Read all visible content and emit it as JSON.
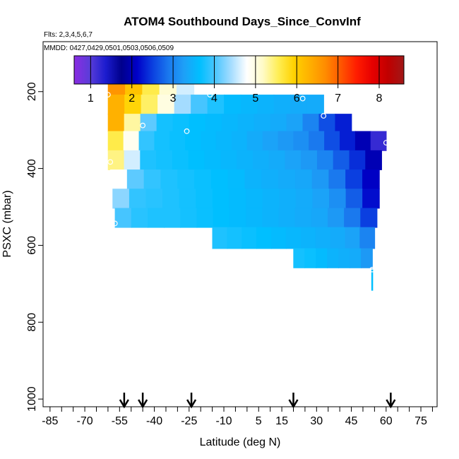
{
  "chart_data": {
    "type": "heatmap",
    "title": "ATOM4 Southbound Days_Since_ConvInf",
    "subtitle_flights": "Flts: 2,3,4,5,6,7",
    "subtitle_dates": "MMDD: 0427,0429,0501,0503,0506,0509",
    "xlabel": "Latitude (deg N)",
    "ylabel": "PSXC (mbar)",
    "xlim": [
      -88,
      82
    ],
    "ylim": [
      1020,
      70
    ],
    "y_reversed": true,
    "x_ticks": [
      -85,
      -70,
      -55,
      -40,
      -25,
      -10,
      5,
      15,
      30,
      45,
      60,
      75
    ],
    "x_minor_ticks": [
      -85,
      -80,
      -75,
      -70,
      -65,
      -60,
      -55,
      -50,
      -45,
      -40,
      -35,
      -30,
      -25,
      -20,
      -15,
      -10,
      -5,
      0,
      5,
      10,
      15,
      20,
      25,
      30,
      35,
      40,
      45,
      50,
      55,
      60,
      65,
      70,
      75,
      80
    ],
    "y_ticks": [
      200,
      400,
      600,
      800,
      1000
    ],
    "colorbar": {
      "ticks": [
        1,
        2,
        3,
        4,
        5,
        6,
        7,
        8
      ],
      "range": [
        0.6,
        8.6
      ],
      "colors": [
        "#8a2be2",
        "#5a3dd8",
        "#1c1ccf",
        "#00008b",
        "#0000c8",
        "#0b40e0",
        "#1a78ee",
        "#1ea0f7",
        "#00bfff",
        "#4cc6ff",
        "#a6ddff",
        "#ffffff",
        "#fffbc8",
        "#ffee55",
        "#ffd200",
        "#ffb000",
        "#ff8c00",
        "#ff5500",
        "#ff1c00",
        "#e60000",
        "#c00000",
        "#a01818"
      ]
    },
    "arrows_lat": [
      -53,
      -45,
      -24,
      20,
      62
    ],
    "cells": [
      {
        "lat": [
          -60,
          -23
        ],
        "p": [
          163,
          208
        ],
        "v": [
          6.6,
          6.1,
          5.6,
          5.1,
          4.6
        ]
      },
      {
        "lat": [
          -60,
          33
        ],
        "p": [
          208,
          258
        ],
        "v": [
          6.3,
          5.9,
          5.5,
          5.0,
          4.4,
          4.0,
          3.8,
          3.6,
          3.55,
          3.5,
          3.45,
          3.4,
          3.4
        ]
      },
      {
        "lat": [
          -60,
          45
        ],
        "p": [
          258,
          303
        ],
        "v": [
          6.3,
          5.3,
          4.1,
          3.75,
          3.7,
          3.65,
          3.6,
          3.55,
          3.5,
          3.45,
          3.4,
          3.3,
          3.0,
          2.6,
          2.3
        ]
      },
      {
        "lat": [
          -60,
          60
        ],
        "p": [
          303,
          353
        ],
        "v": [
          5.6,
          4.9,
          3.9,
          3.75,
          3.7,
          3.65,
          3.6,
          3.55,
          3.5,
          3.4,
          3.3,
          3.2,
          3.1,
          2.9,
          2.6,
          2.3,
          2.0,
          1.2
        ]
      },
      {
        "lat": [
          -60,
          58
        ],
        "p": [
          353,
          403
        ],
        "v": [
          5.4,
          4.6,
          3.8,
          3.75,
          3.7,
          3.65,
          3.6,
          3.55,
          3.5,
          3.45,
          3.4,
          3.3,
          3.2,
          3.0,
          2.7,
          2.4,
          2.0
        ]
      },
      {
        "lat": [
          -59,
          57
        ],
        "p": [
          403,
          453
        ],
        "v": [
          4.8,
          4.1,
          3.9,
          3.8,
          3.75,
          3.7,
          3.65,
          3.6,
          3.5,
          3.45,
          3.4,
          3.35,
          3.2,
          2.9,
          2.5,
          2.1
        ]
      },
      {
        "lat": [
          -58,
          57
        ],
        "p": [
          453,
          503
        ],
        "v": [
          4.3,
          3.9,
          3.85,
          3.8,
          3.75,
          3.7,
          3.65,
          3.6,
          3.55,
          3.5,
          3.45,
          3.4,
          3.3,
          3.1,
          2.7,
          2.2
        ]
      },
      {
        "lat": [
          -57,
          56
        ],
        "p": [
          503,
          553
        ],
        "v": [
          4.0,
          3.85,
          3.8,
          3.8,
          3.75,
          3.7,
          3.65,
          3.6,
          3.55,
          3.5,
          3.45,
          3.4,
          3.35,
          3.2,
          2.9,
          2.5
        ]
      },
      {
        "lat": [
          -15,
          55
        ],
        "p": [
          553,
          608
        ],
        "v": [
          3.8,
          3.75,
          3.7,
          3.65,
          3.6,
          3.55,
          3.5,
          3.45,
          3.4,
          3.3,
          3.0
        ]
      },
      {
        "lat": [
          20,
          54
        ],
        "p": [
          608,
          658
        ],
        "v": [
          3.75,
          3.7,
          3.6,
          3.5,
          3.45,
          3.4,
          3.2
        ]
      }
    ],
    "markers": [
      {
        "lat": -60,
        "p": 208
      },
      {
        "lat": -16,
        "p": 208
      },
      {
        "lat": 24,
        "p": 218
      },
      {
        "lat": 33,
        "p": 263
      },
      {
        "lat": -45,
        "p": 288
      },
      {
        "lat": -26,
        "p": 303
      },
      {
        "lat": 60,
        "p": 333
      },
      {
        "lat": -59,
        "p": 383
      },
      {
        "lat": -57,
        "p": 543
      },
      {
        "lat": 54,
        "p": 663
      }
    ],
    "profile": {
      "lat": 54,
      "p": [
        663,
        718
      ],
      "color": "#00bfff"
    }
  }
}
